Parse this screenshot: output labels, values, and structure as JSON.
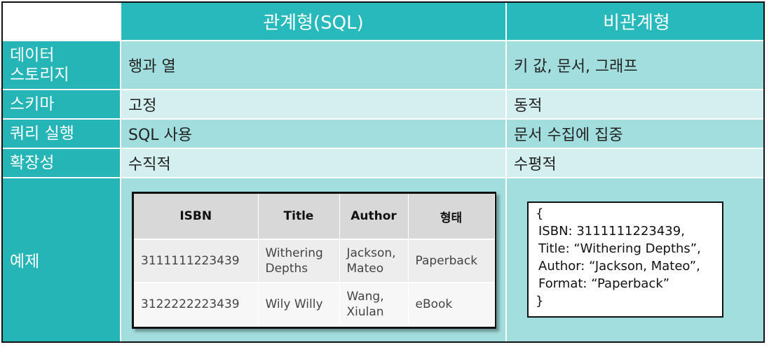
{
  "header": {
    "relational": "관계형(SQL)",
    "nonrelational": "비관계형"
  },
  "rows": [
    {
      "label_line1": "데이터",
      "label_line2": "스토리지",
      "relational": "행과 열",
      "nonrelational": "키 값, 문서, 그래프"
    },
    {
      "label": "스키마",
      "relational": "고정",
      "nonrelational": "동적"
    },
    {
      "label": "쿼리 실행",
      "relational": "SQL 사용",
      "nonrelational": "문서 수집에 집중"
    },
    {
      "label": "확장성",
      "relational": "수직적",
      "nonrelational": "수평적"
    }
  ],
  "example": {
    "label": "예제",
    "table": {
      "headers": [
        "ISBN",
        "Title",
        "Author",
        "형태"
      ],
      "rows": [
        {
          "isbn": "3111111223439",
          "title_1": "Withering",
          "title_2": "Depths",
          "author_1": "Jackson,",
          "author_2": "Mateo",
          "format": "Paperback"
        },
        {
          "isbn": "3122222223439",
          "title": "Wily Willy",
          "author_1": "Wang,",
          "author_2": "Xiulan",
          "format": "eBook"
        }
      ]
    },
    "document": {
      "open": "{",
      "line1": "ISBN: 3111111223439,",
      "line2": "Title: “Withering Depths”,",
      "line3": "Author: “Jackson, Mateo”,",
      "line4": "Format: “Paperback”",
      "close": "}"
    }
  },
  "colors": {
    "header_bg": "#27b9bb",
    "label_bg": "#25b5b7",
    "row_dark": "#a3dedf",
    "row_light": "#d4efef"
  }
}
